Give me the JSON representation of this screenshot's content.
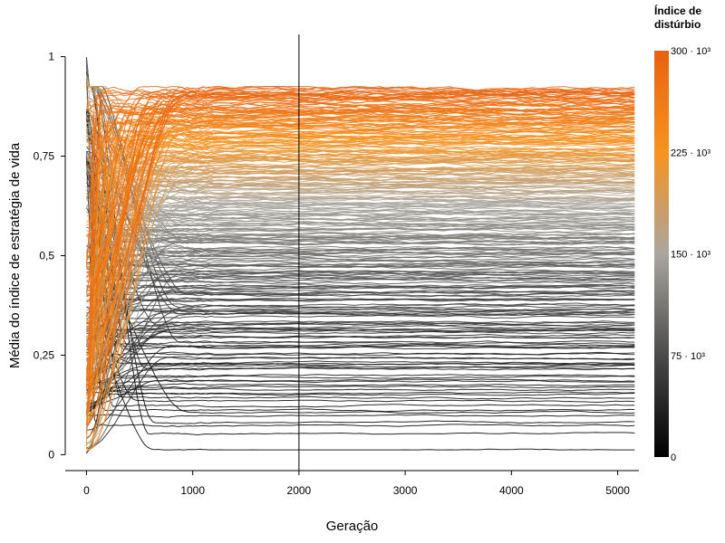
{
  "chart_data": {
    "type": "line",
    "title": "",
    "xlabel": "Geração",
    "ylabel": "Média do índice de estratégia de vida",
    "xlim": [
      -200,
      5200
    ],
    "ylim": [
      -0.04,
      1.04
    ],
    "x_ticks": [
      {
        "value": 0,
        "label": "0"
      },
      {
        "value": 1000,
        "label": "1000"
      },
      {
        "value": 2000,
        "label": "2000"
      },
      {
        "value": 3000,
        "label": "3000"
      },
      {
        "value": 4000,
        "label": "4000"
      },
      {
        "value": 5000,
        "label": "5000"
      }
    ],
    "y_ticks": [
      {
        "value": 0,
        "label": "0"
      },
      {
        "value": 0.25,
        "label": "0,25"
      },
      {
        "value": 0.5,
        "label": "0,5"
      },
      {
        "value": 0.75,
        "label": "0,75"
      },
      {
        "value": 1,
        "label": "1"
      }
    ],
    "reference_line": {
      "x": 2000
    },
    "grid": false,
    "legend": {
      "title_lines": [
        "Índice de",
        "distúrbio"
      ],
      "placement": "right",
      "type": "colorbar",
      "range": [
        0,
        300000
      ],
      "ticks": [
        {
          "value": 0,
          "label": "0"
        },
        {
          "value": 75000,
          "label": "75 · 10³"
        },
        {
          "value": 150000,
          "label": "150 · 10³"
        },
        {
          "value": 225000,
          "label": "225 · 10³"
        },
        {
          "value": 300000,
          "label": "300 · 10³"
        }
      ],
      "color_stops": [
        {
          "value": 0,
          "color": "#000000"
        },
        {
          "value": 75000,
          "color": "#4a4a4a"
        },
        {
          "value": 150000,
          "color": "#a9a69e"
        },
        {
          "value": 225000,
          "color": "#f7931e"
        },
        {
          "value": 300000,
          "color": "#e8620f"
        }
      ]
    },
    "series_summary": {
      "count": 300,
      "x_start": 0,
      "x_end": 5200,
      "initial_value_range": [
        0,
        1
      ],
      "final_value_range": [
        0.01,
        0.92
      ],
      "color_by": "Índice de distúrbio"
    }
  }
}
